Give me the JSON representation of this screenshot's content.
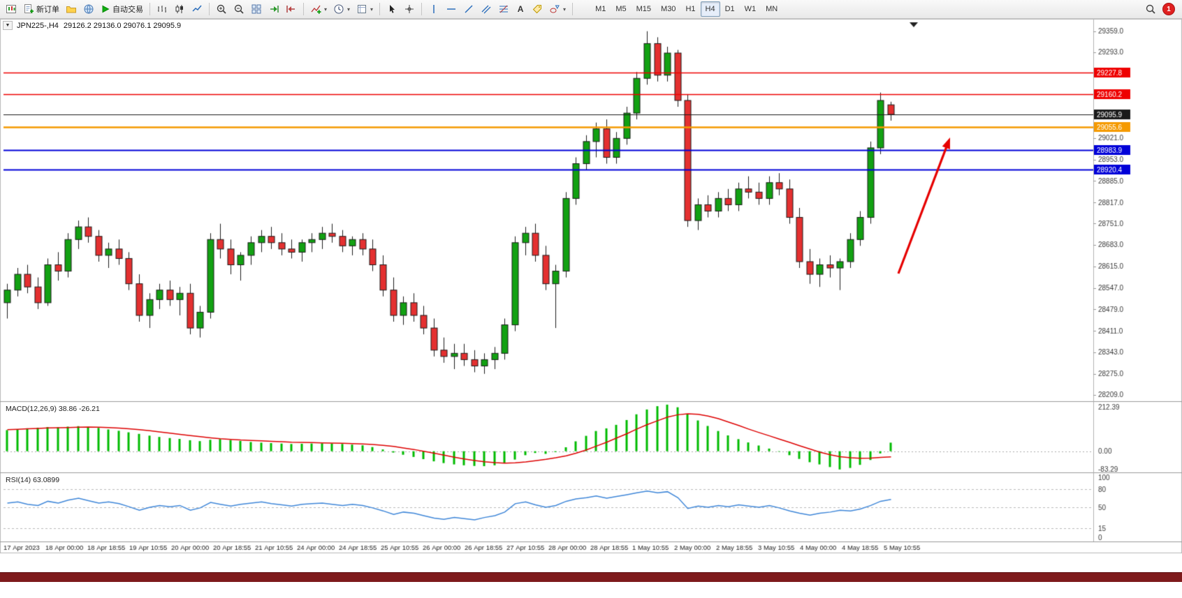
{
  "toolbar": {
    "new_order_label": "新订单",
    "autotrading_label": "自动交易",
    "text_tool_label": "A",
    "dropdown_glyph": "▾",
    "timeframes": [
      "M1",
      "M5",
      "M15",
      "M30",
      "H1",
      "H4",
      "D1",
      "W1",
      "MN"
    ],
    "active_timeframe": "H4",
    "notification_count": "1"
  },
  "chart": {
    "marker_glyph": "▼",
    "symbol_period": "JPN225-,H4",
    "ohlc_text": "29126.2 29136.0 29076.1 29095.9"
  },
  "chart_data": {
    "type": "candlestick",
    "symbol": "JPN225-",
    "timeframe": "H4",
    "current_bar": {
      "open": 29126.2,
      "high": 29136.0,
      "low": 29076.1,
      "close": 29095.9
    },
    "price_axis": {
      "range": [
        28195,
        29385
      ],
      "ticks": [
        29359.0,
        29293.0,
        29021.0,
        28953.0,
        28885.0,
        28817.0,
        28751.0,
        28683.0,
        28615.0,
        28547.0,
        28479.0,
        28411.0,
        28343.0,
        28275.0,
        28209.0
      ]
    },
    "levels": [
      {
        "price": 29227.8,
        "label": "29227.8",
        "color": "#ee0000",
        "width": 1.5
      },
      {
        "price": 29160.2,
        "label": "29160.2",
        "color": "#ee0000",
        "width": 1.5
      },
      {
        "price": 29095.9,
        "label": "29095.9",
        "color": "#1a1a1a",
        "width": 1.1
      },
      {
        "price": 29055.6,
        "label": "29055.6",
        "color": "#f59a00",
        "width": 2.4
      },
      {
        "price": 28983.9,
        "label": "28983.9",
        "color": "#0000d8",
        "width": 1.8
      },
      {
        "price": 28920.4,
        "label": "28920.4",
        "color": "#0000d8",
        "width": 1.8
      }
    ],
    "x_labels": [
      "17 Apr 2023",
      "18 Apr 00:00",
      "18 Apr 18:55",
      "19 Apr 10:55",
      "20 Apr 00:00",
      "20 Apr 18:55",
      "21 Apr 10:55",
      "24 Apr 00:00",
      "24 Apr 18:55",
      "25 Apr 10:55",
      "26 Apr 00:00",
      "26 Apr 18:55",
      "27 Apr 10:55",
      "28 Apr 00:00",
      "28 Apr 18:55",
      "1 May 10:55",
      "2 May 00:00",
      "2 May 18:55",
      "3 May 10:55",
      "4 May 00:00",
      "4 May 18:55",
      "5 May 10:55"
    ],
    "candles": [
      [
        28500,
        28560,
        28450,
        28540
      ],
      [
        28540,
        28610,
        28520,
        28590
      ],
      [
        28590,
        28620,
        28530,
        28550
      ],
      [
        28550,
        28580,
        28480,
        28500
      ],
      [
        28500,
        28640,
        28490,
        28620
      ],
      [
        28620,
        28660,
        28570,
        28600
      ],
      [
        28600,
        28720,
        28580,
        28700
      ],
      [
        28700,
        28760,
        28670,
        28740
      ],
      [
        28740,
        28770,
        28690,
        28710
      ],
      [
        28710,
        28730,
        28630,
        28650
      ],
      [
        28650,
        28690,
        28610,
        28670
      ],
      [
        28670,
        28700,
        28620,
        28640
      ],
      [
        28640,
        28660,
        28540,
        28560
      ],
      [
        28560,
        28590,
        28440,
        28460
      ],
      [
        28460,
        28530,
        28420,
        28510
      ],
      [
        28510,
        28560,
        28480,
        28540
      ],
      [
        28540,
        28570,
        28490,
        28510
      ],
      [
        28510,
        28550,
        28460,
        28530
      ],
      [
        28530,
        28560,
        28400,
        28420
      ],
      [
        28420,
        28490,
        28390,
        28470
      ],
      [
        28470,
        28720,
        28450,
        28700
      ],
      [
        28700,
        28750,
        28640,
        28670
      ],
      [
        28670,
        28700,
        28590,
        28620
      ],
      [
        28620,
        28660,
        28570,
        28650
      ],
      [
        28650,
        28710,
        28620,
        28690
      ],
      [
        28690,
        28730,
        28660,
        28710
      ],
      [
        28710,
        28740,
        28670,
        28690
      ],
      [
        28690,
        28720,
        28650,
        28670
      ],
      [
        28670,
        28700,
        28640,
        28660
      ],
      [
        28660,
        28700,
        28630,
        28690
      ],
      [
        28690,
        28720,
        28660,
        28700
      ],
      [
        28700,
        28740,
        28670,
        28720
      ],
      [
        28720,
        28750,
        28690,
        28710
      ],
      [
        28710,
        28730,
        28660,
        28680
      ],
      [
        28680,
        28710,
        28650,
        28700
      ],
      [
        28700,
        28720,
        28650,
        28670
      ],
      [
        28670,
        28700,
        28600,
        28620
      ],
      [
        28620,
        28650,
        28520,
        28540
      ],
      [
        28540,
        28580,
        28440,
        28460
      ],
      [
        28460,
        28520,
        28430,
        28500
      ],
      [
        28500,
        28530,
        28440,
        28460
      ],
      [
        28460,
        28490,
        28400,
        28420
      ],
      [
        28420,
        28450,
        28330,
        28350
      ],
      [
        28350,
        28390,
        28310,
        28330
      ],
      [
        28330,
        28370,
        28290,
        28340
      ],
      [
        28340,
        28370,
        28300,
        28320
      ],
      [
        28320,
        28350,
        28280,
        28300
      ],
      [
        28300,
        28340,
        28275,
        28320
      ],
      [
        28320,
        28360,
        28290,
        28340
      ],
      [
        28340,
        28450,
        28320,
        28430
      ],
      [
        28430,
        28710,
        28410,
        28690
      ],
      [
        28690,
        28740,
        28650,
        28720
      ],
      [
        28720,
        28750,
        28630,
        28650
      ],
      [
        28650,
        28680,
        28540,
        28560
      ],
      [
        28560,
        28620,
        28420,
        28600
      ],
      [
        28600,
        28850,
        28580,
        28830
      ],
      [
        28830,
        28960,
        28810,
        28940
      ],
      [
        28940,
        29030,
        28920,
        29010
      ],
      [
        29010,
        29070,
        28960,
        29050
      ],
      [
        29050,
        29080,
        28940,
        28960
      ],
      [
        28960,
        29040,
        28940,
        29020
      ],
      [
        29020,
        29120,
        29000,
        29100
      ],
      [
        29100,
        29230,
        29080,
        29210
      ],
      [
        29210,
        29359,
        29190,
        29320
      ],
      [
        29320,
        29340,
        29200,
        29220
      ],
      [
        29220,
        29310,
        29200,
        29290
      ],
      [
        29290,
        29300,
        29120,
        29140
      ],
      [
        29140,
        29160,
        28740,
        28760
      ],
      [
        28760,
        28830,
        28730,
        28810
      ],
      [
        28810,
        28840,
        28770,
        28790
      ],
      [
        28790,
        28850,
        28770,
        28830
      ],
      [
        28830,
        28860,
        28790,
        28810
      ],
      [
        28810,
        28880,
        28790,
        28860
      ],
      [
        28860,
        28900,
        28830,
        28850
      ],
      [
        28850,
        28880,
        28810,
        28830
      ],
      [
        28830,
        28900,
        28810,
        28880
      ],
      [
        28880,
        28910,
        28840,
        28860
      ],
      [
        28860,
        28890,
        28750,
        28770
      ],
      [
        28770,
        28800,
        28610,
        28630
      ],
      [
        28630,
        28670,
        28560,
        28590
      ],
      [
        28590,
        28640,
        28550,
        28620
      ],
      [
        28620,
        28650,
        28580,
        28610
      ],
      [
        28610,
        28640,
        28540,
        28630
      ],
      [
        28630,
        28720,
        28610,
        28700
      ],
      [
        28700,
        28790,
        28680,
        28770
      ],
      [
        28770,
        29010,
        28750,
        28990
      ],
      [
        28990,
        29165,
        28970,
        29140
      ],
      [
        29126.2,
        29136.0,
        29076.1,
        29095.9
      ]
    ],
    "macd": {
      "label": "MACD(12,26,9) 38.86 -26.21",
      "params": "12,26,9",
      "main_value": 38.86,
      "signal_value": -26.21,
      "axis": [
        212.39,
        0.0,
        -83.29
      ],
      "histogram": [
        96,
        100,
        104,
        107,
        110,
        109,
        112,
        114,
        111,
        106,
        99,
        93,
        86,
        79,
        71,
        65,
        60,
        56,
        50,
        46,
        52,
        55,
        51,
        47,
        42,
        39,
        37,
        35,
        33,
        34,
        35,
        36,
        35,
        33,
        30,
        27,
        19,
        8,
        -6,
        -16,
        -26,
        -36,
        -46,
        -54,
        -60,
        -64,
        -67,
        -68,
        -64,
        -54,
        -38,
        -18,
        -8,
        -12,
        -4,
        18,
        45,
        70,
        92,
        104,
        120,
        142,
        168,
        190,
        205,
        212,
        200,
        170,
        140,
        115,
        92,
        72,
        55,
        40,
        26,
        12,
        -2,
        -18,
        -35,
        -50,
        -60,
        -72,
        -83,
        -76,
        -62,
        -40,
        -10,
        39
      ],
      "signal": [
        98,
        100,
        102,
        104,
        106,
        107,
        108,
        109,
        110,
        109,
        108,
        105,
        102,
        98,
        93,
        88,
        82,
        77,
        71,
        66,
        61,
        57,
        54,
        51,
        49,
        47,
        45,
        43,
        41,
        40,
        39,
        38,
        37,
        36,
        35,
        33,
        31,
        27,
        22,
        15,
        8,
        0,
        -9,
        -18,
        -27,
        -35,
        -42,
        -48,
        -52,
        -54,
        -53,
        -49,
        -43,
        -37,
        -30,
        -21,
        -9,
        6,
        23,
        41,
        60,
        80,
        101,
        121,
        139,
        155,
        166,
        170,
        168,
        160,
        148,
        133,
        117,
        101,
        85,
        70,
        55,
        40,
        25,
        10,
        -4,
        -16,
        -25,
        -30,
        -32,
        -31,
        -28,
        -26
      ]
    },
    "rsi": {
      "label": "RSI(14) 63.0899",
      "period": 14,
      "value": 63.0899,
      "axis": [
        100,
        80,
        50,
        15,
        0
      ],
      "levels": [
        80,
        50,
        15
      ],
      "values": [
        57,
        59,
        55,
        53,
        60,
        57,
        62,
        65,
        61,
        57,
        59,
        56,
        51,
        45,
        50,
        53,
        51,
        53,
        45,
        49,
        58,
        55,
        52,
        55,
        57,
        59,
        56,
        54,
        52,
        55,
        56,
        57,
        55,
        53,
        55,
        53,
        49,
        44,
        38,
        42,
        40,
        36,
        32,
        30,
        33,
        31,
        29,
        33,
        36,
        42,
        56,
        59,
        54,
        50,
        53,
        60,
        64,
        66,
        69,
        65,
        68,
        71,
        74,
        77,
        74,
        76,
        66,
        48,
        52,
        50,
        53,
        51,
        54,
        52,
        50,
        53,
        49,
        44,
        40,
        37,
        40,
        42,
        45,
        44,
        47,
        53,
        60,
        63
      ]
    },
    "arrow": {
      "from": [
        1286,
        365
      ],
      "to": [
        1360,
        170
      ],
      "color": "#e60000"
    },
    "colors": {
      "up": "#12a112",
      "down": "#e43030",
      "candle_outline": "#1b1b1b",
      "macd_histogram": "#00bb00",
      "macd_signal": "#dd0000",
      "rsi_line": "#3e86d8",
      "axis_text": "#3a3a3a",
      "arrow": "#e60000",
      "window_border_bottom": "#7e1a1c"
    }
  }
}
